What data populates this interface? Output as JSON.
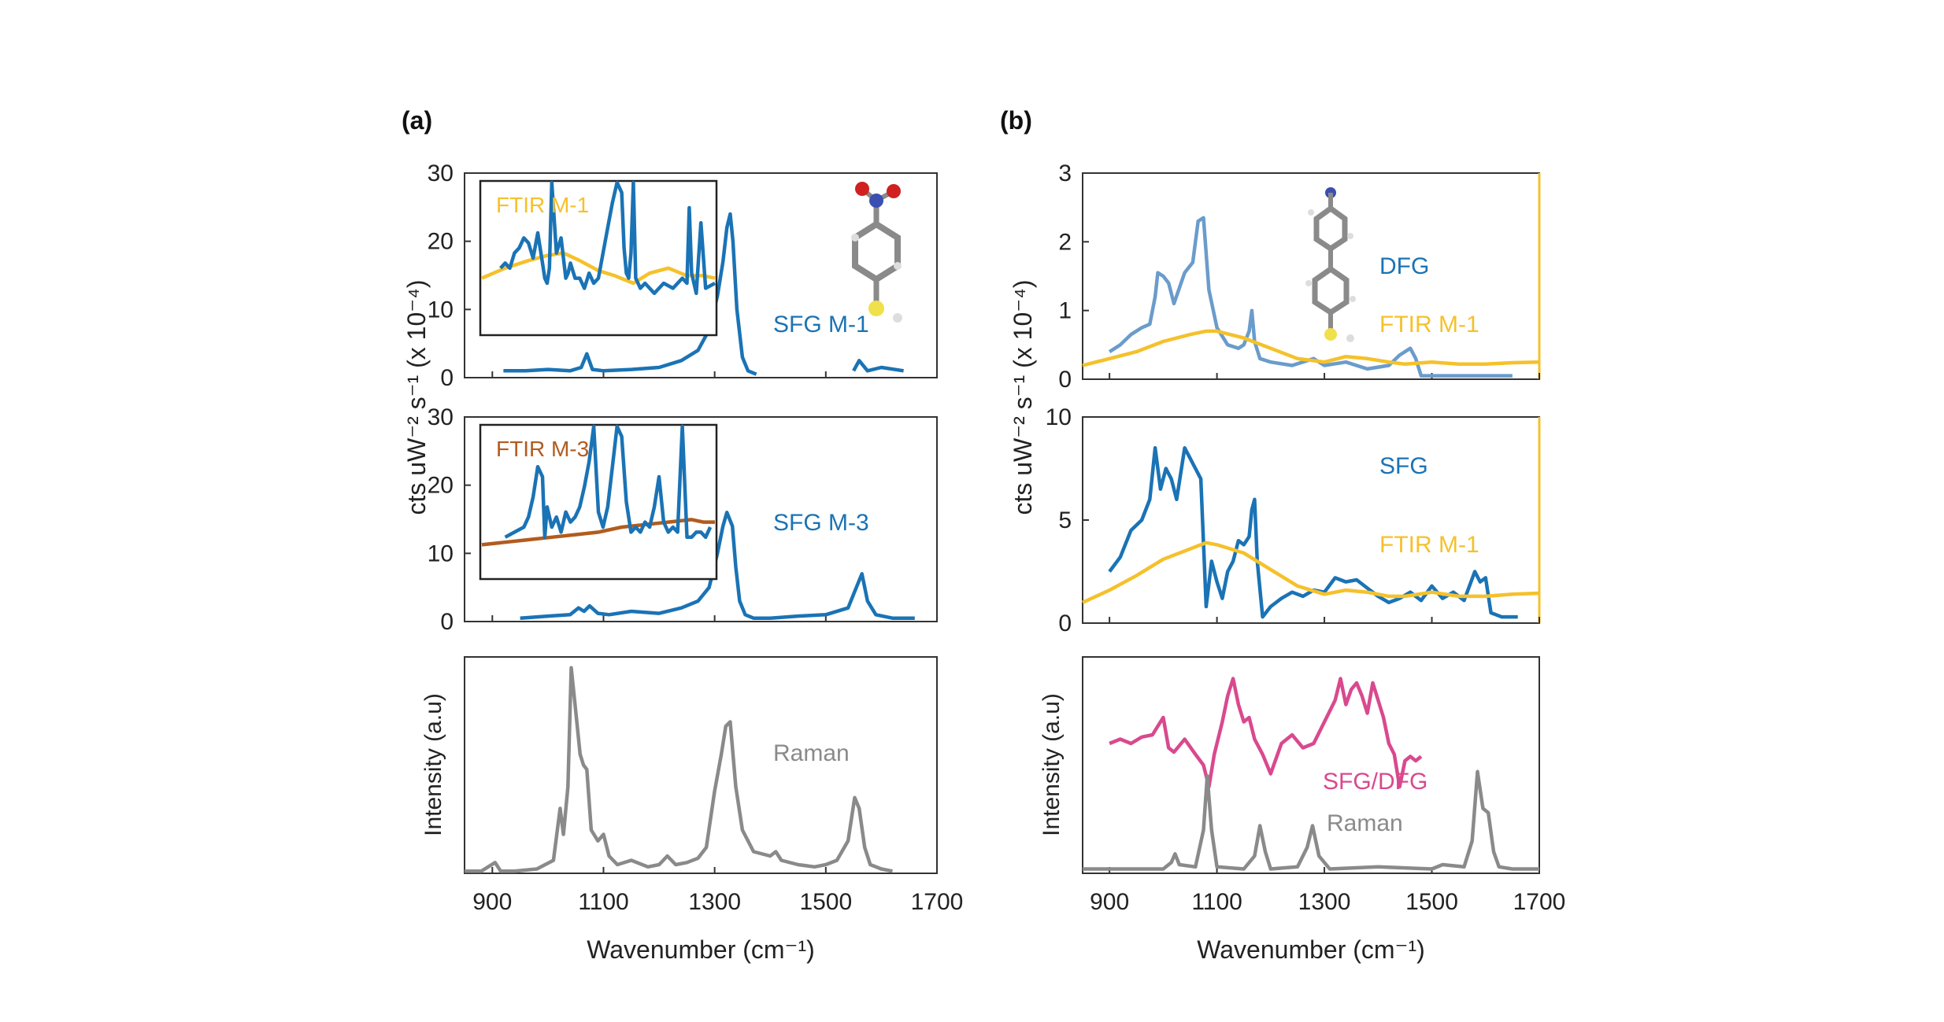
{
  "colors": {
    "sfg": "#1a73b5",
    "dfg": "#6a9ccb",
    "ftir_yellow": "#f5c12b",
    "ftir_brown": "#b25b1e",
    "raman": "#8a8a8a",
    "ratio": "#d9498e",
    "axis": "#333333"
  },
  "labels": {
    "panel_a": "(a)",
    "panel_b": "(b)",
    "ylabel_a": "cts uW⁻² s⁻¹ (x 10⁻⁴)",
    "ylabel_b": "cts uW⁻² s⁻¹ (x 10⁻⁴)",
    "ylabel_raman_a": "Intensity (a.u)",
    "ylabel_raman_b": "Intensity (a.u)",
    "xlabel_a": "Wavenumber (cm⁻¹)",
    "xlabel_b": "Wavenumber (cm⁻¹)",
    "a1_ftir": "FTIR M-1",
    "a1_sfg": "SFG M-1",
    "a2_ftir": "FTIR M-3",
    "a2_sfg": "SFG M-3",
    "a3_raman": "Raman",
    "b1_dfg": "DFG",
    "b1_ftir": "FTIR M-1",
    "b2_sfg": "SFG",
    "b2_ftir": "FTIR M-1",
    "b3_ratio": "SFG/DFG",
    "b3_raman": "Raman"
  },
  "chart_data": [
    {
      "id": "a1",
      "type": "line",
      "xlim": [
        850,
        1700
      ],
      "ylim": [
        0,
        30
      ],
      "yticks": [
        "0",
        "10",
        "20",
        "30"
      ],
      "series": [
        {
          "name": "SFG M-1",
          "x": [
            920,
            960,
            1000,
            1040,
            1060,
            1070,
            1080,
            1100,
            1150,
            1200,
            1240,
            1270,
            1290,
            1305,
            1315,
            1322,
            1328,
            1333,
            1340,
            1350,
            1360,
            1375
          ],
          "y": [
            1,
            1,
            1.2,
            1,
            1.5,
            3.5,
            1.2,
            1,
            1.2,
            1.5,
            2.5,
            4,
            7,
            12,
            17,
            22,
            24,
            20,
            10,
            3,
            1,
            0.5
          ]
        },
        {
          "name": "SFG M-1",
          "x": [
            1550,
            1560,
            1575,
            1600,
            1640
          ],
          "y": [
            1,
            2.5,
            1,
            1.5,
            1
          ]
        }
      ]
    },
    {
      "id": "a1_inset",
      "type": "line",
      "xlim": [
        0,
        100
      ],
      "ylim": [
        0,
        30
      ],
      "series": [
        {
          "name": "FTIR M-1",
          "x": [
            0,
            10,
            20,
            28,
            35,
            42,
            50,
            57,
            65,
            72,
            80,
            88,
            95,
            100
          ],
          "y": [
            11,
            13,
            14.5,
            15.5,
            16,
            14.5,
            12.5,
            11.5,
            10,
            12,
            13,
            11.5,
            11.5,
            11
          ]
        },
        {
          "name": "SFG M-1",
          "x": [
            8,
            10,
            12,
            14,
            16,
            18,
            20,
            22,
            24,
            26,
            27,
            28,
            29,
            30,
            32,
            34,
            36,
            37,
            38,
            40,
            42,
            44,
            46,
            48,
            50,
            52,
            54,
            56,
            58,
            60,
            61,
            62,
            63,
            64,
            65,
            66,
            68,
            70,
            72,
            74,
            78,
            82,
            86,
            88,
            89,
            90,
            92,
            94,
            96,
            100
          ],
          "y": [
            13,
            14,
            13,
            16,
            17,
            19,
            18,
            15,
            20,
            14,
            11,
            10,
            13,
            30,
            16,
            19,
            11,
            12,
            14,
            11,
            11,
            9,
            12,
            10,
            11,
            16,
            21,
            26,
            30,
            28,
            17,
            12,
            11,
            16,
            30,
            11,
            9,
            10,
            9,
            8,
            10,
            9,
            11,
            10,
            25,
            12,
            8,
            22,
            9,
            10
          ]
        }
      ]
    },
    {
      "id": "a2",
      "type": "line",
      "xlim": [
        850,
        1700
      ],
      "ylim": [
        0,
        30
      ],
      "yticks": [
        "0",
        "10",
        "20",
        "30"
      ],
      "series": [
        {
          "name": "SFG M-3",
          "x": [
            950,
            1000,
            1040,
            1055,
            1065,
            1075,
            1090,
            1110,
            1150,
            1200,
            1240,
            1270,
            1290,
            1305,
            1315,
            1322,
            1327,
            1332,
            1338,
            1345,
            1355,
            1370,
            1400,
            1450,
            1500,
            1540,
            1555,
            1565,
            1575,
            1590,
            1620,
            1660
          ],
          "y": [
            0.5,
            0.8,
            1,
            2,
            1.5,
            2.3,
            1.2,
            1,
            1.5,
            1.2,
            2,
            3,
            5,
            10,
            14,
            16,
            15,
            14,
            8,
            3,
            1,
            0.5,
            0.5,
            0.8,
            1,
            2,
            5,
            7,
            3,
            1,
            0.5,
            0.5
          ]
        }
      ]
    },
    {
      "id": "a2_inset",
      "type": "line",
      "xlim": [
        0,
        100
      ],
      "ylim": [
        0,
        30
      ],
      "series": [
        {
          "name": "FTIR M-3",
          "x": [
            0,
            10,
            20,
            30,
            40,
            50,
            60,
            70,
            80,
            90,
            95,
            100
          ],
          "y": [
            6.5,
            7,
            7.5,
            8,
            8.5,
            9,
            10,
            10.5,
            11,
            11.5,
            11,
            11
          ]
        },
        {
          "name": "SFG M-3",
          "x": [
            10,
            14,
            18,
            20,
            22,
            24,
            26,
            27,
            28,
            30,
            32,
            34,
            36,
            38,
            40,
            42,
            44,
            46,
            48,
            50,
            52,
            54,
            56,
            58,
            60,
            62,
            64,
            66,
            68,
            70,
            72,
            74,
            76,
            78,
            80,
            82,
            84,
            86,
            88,
            90,
            92,
            94,
            96,
            98
          ],
          "y": [
            8,
            9,
            10,
            12,
            16,
            22,
            20,
            8,
            14,
            10,
            12,
            9,
            13,
            11,
            12,
            14,
            18,
            23,
            30,
            13,
            10,
            14,
            22,
            30,
            28,
            15,
            9,
            10,
            9,
            11,
            10,
            14,
            20,
            11,
            9,
            10,
            9,
            30,
            8,
            8,
            9,
            9,
            8,
            10
          ]
        }
      ]
    },
    {
      "id": "a3",
      "type": "line",
      "xlim": [
        850,
        1700
      ],
      "ylim": [
        0,
        100
      ],
      "series": [
        {
          "name": "Raman",
          "x": [
            850,
            880,
            905,
            915,
            940,
            980,
            1010,
            1022,
            1028,
            1036,
            1042,
            1050,
            1058,
            1064,
            1070,
            1078,
            1090,
            1100,
            1110,
            1125,
            1150,
            1180,
            1200,
            1215,
            1230,
            1250,
            1270,
            1285,
            1300,
            1312,
            1320,
            1328,
            1338,
            1350,
            1370,
            1400,
            1410,
            1420,
            1450,
            1480,
            1500,
            1520,
            1540,
            1552,
            1560,
            1570,
            1580,
            1600,
            1620
          ],
          "y": [
            1,
            1,
            5,
            1,
            1,
            2,
            6,
            30,
            18,
            40,
            95,
            75,
            55,
            50,
            48,
            20,
            15,
            18,
            8,
            4,
            6,
            3,
            4,
            8,
            4,
            5,
            7,
            12,
            38,
            55,
            68,
            70,
            40,
            20,
            10,
            8,
            10,
            6,
            4,
            3,
            4,
            6,
            15,
            35,
            30,
            12,
            4,
            2,
            1
          ]
        }
      ]
    },
    {
      "id": "b1",
      "type": "line",
      "xlim": [
        850,
        1700
      ],
      "ylim": [
        0,
        3
      ],
      "yticks": [
        "0",
        "1",
        "2",
        "3"
      ],
      "series": [
        {
          "name": "DFG",
          "x": [
            900,
            920,
            940,
            960,
            975,
            985,
            990,
            1000,
            1010,
            1020,
            1040,
            1055,
            1065,
            1075,
            1085,
            1100,
            1120,
            1140,
            1150,
            1160,
            1165,
            1170,
            1180,
            1200,
            1240,
            1280,
            1300,
            1340,
            1380,
            1420,
            1440,
            1460,
            1470,
            1480,
            1500,
            1540,
            1600,
            1650
          ],
          "y": [
            0.4,
            0.5,
            0.65,
            0.75,
            0.8,
            1.2,
            1.55,
            1.5,
            1.4,
            1.1,
            1.55,
            1.7,
            2.3,
            2.35,
            1.3,
            0.75,
            0.5,
            0.45,
            0.5,
            0.7,
            1.0,
            0.55,
            0.3,
            0.25,
            0.2,
            0.3,
            0.2,
            0.25,
            0.15,
            0.2,
            0.35,
            0.45,
            0.3,
            0.05,
            0.05,
            0.05,
            0.05,
            0.05
          ]
        },
        {
          "name": "FTIR M-1",
          "x": [
            850,
            900,
            950,
            1000,
            1050,
            1080,
            1100,
            1150,
            1200,
            1250,
            1300,
            1340,
            1380,
            1420,
            1450,
            1500,
            1550,
            1600,
            1650,
            1700
          ],
          "y": [
            0.2,
            0.3,
            0.4,
            0.55,
            0.65,
            0.7,
            0.7,
            0.6,
            0.45,
            0.3,
            0.25,
            0.33,
            0.3,
            0.25,
            0.22,
            0.25,
            0.22,
            0.22,
            0.24,
            0.25
          ]
        }
      ]
    },
    {
      "id": "b2",
      "type": "line",
      "xlim": [
        850,
        1700
      ],
      "ylim": [
        0,
        10
      ],
      "yticks": [
        "0",
        "5",
        "10"
      ],
      "series": [
        {
          "name": "SFG",
          "x": [
            900,
            920,
            940,
            960,
            975,
            985,
            995,
            1005,
            1015,
            1025,
            1040,
            1050,
            1060,
            1070,
            1080,
            1090,
            1100,
            1110,
            1120,
            1130,
            1140,
            1150,
            1160,
            1165,
            1170,
            1175,
            1185,
            1200,
            1220,
            1240,
            1260,
            1280,
            1300,
            1320,
            1340,
            1360,
            1380,
            1400,
            1420,
            1440,
            1460,
            1480,
            1500,
            1520,
            1540,
            1560,
            1580,
            1590,
            1600,
            1610,
            1630,
            1660
          ],
          "y": [
            2.5,
            3.2,
            4.5,
            5,
            6,
            8.5,
            6.5,
            7.5,
            7,
            6,
            8.5,
            8,
            7.5,
            7,
            0.8,
            3,
            2,
            1.2,
            2.5,
            3,
            4,
            3.8,
            4.2,
            5.5,
            6,
            3,
            0.3,
            0.8,
            1.2,
            1.5,
            1.3,
            1.6,
            1.5,
            2.2,
            2,
            2.1,
            1.7,
            1.3,
            1,
            1.2,
            1.5,
            1.1,
            1.8,
            1.2,
            1.5,
            1.1,
            2.5,
            2,
            2.2,
            0.5,
            0.3,
            0.3
          ]
        },
        {
          "name": "FTIR M-1",
          "x": [
            850,
            900,
            950,
            1000,
            1050,
            1080,
            1100,
            1150,
            1200,
            1250,
            1300,
            1340,
            1380,
            1420,
            1450,
            1500,
            1550,
            1600,
            1650,
            1700
          ],
          "y": [
            1.0,
            1.6,
            2.3,
            3.1,
            3.6,
            3.9,
            3.8,
            3.4,
            2.6,
            1.8,
            1.4,
            1.6,
            1.5,
            1.3,
            1.3,
            1.5,
            1.3,
            1.3,
            1.4,
            1.45
          ]
        }
      ]
    },
    {
      "id": "b3",
      "type": "line",
      "xlim": [
        850,
        1700
      ],
      "ylim": [
        0,
        100
      ],
      "series": [
        {
          "name": "SFG/DFG",
          "x": [
            900,
            920,
            940,
            960,
            980,
            990,
            1000,
            1010,
            1020,
            1040,
            1060,
            1075,
            1085,
            1095,
            1110,
            1120,
            1130,
            1140,
            1150,
            1160,
            1170,
            1185,
            1200,
            1220,
            1240,
            1260,
            1280,
            1300,
            1320,
            1330,
            1340,
            1350,
            1360,
            1370,
            1380,
            1390,
            1400,
            1410,
            1420,
            1430,
            1440,
            1450,
            1460,
            1470,
            1480
          ],
          "y": [
            60,
            62,
            60,
            63,
            64,
            68,
            72,
            58,
            56,
            62,
            55,
            50,
            40,
            55,
            70,
            82,
            90,
            78,
            70,
            72,
            62,
            55,
            46,
            60,
            64,
            58,
            60,
            70,
            80,
            90,
            78,
            85,
            88,
            82,
            74,
            88,
            80,
            72,
            60,
            55,
            40,
            52,
            54,
            52,
            54
          ]
        },
        {
          "name": "Raman",
          "x": [
            850,
            900,
            1000,
            1015,
            1022,
            1030,
            1060,
            1075,
            1082,
            1090,
            1100,
            1150,
            1170,
            1180,
            1190,
            1200,
            1250,
            1268,
            1278,
            1290,
            1310,
            1400,
            1500,
            1520,
            1560,
            1575,
            1585,
            1595,
            1605,
            1615,
            1625,
            1650,
            1700
          ],
          "y": [
            2,
            2,
            2,
            5,
            9,
            4,
            3,
            20,
            45,
            20,
            3,
            2,
            8,
            22,
            10,
            2,
            3,
            12,
            22,
            8,
            2,
            3,
            2,
            4,
            3,
            15,
            47,
            30,
            28,
            10,
            3,
            2,
            2
          ]
        }
      ]
    }
  ],
  "xaxis": {
    "ticks": [
      "900",
      "1100",
      "1300",
      "1500",
      "1700"
    ],
    "tick_values": [
      900,
      1100,
      1300,
      1500,
      1700
    ]
  }
}
